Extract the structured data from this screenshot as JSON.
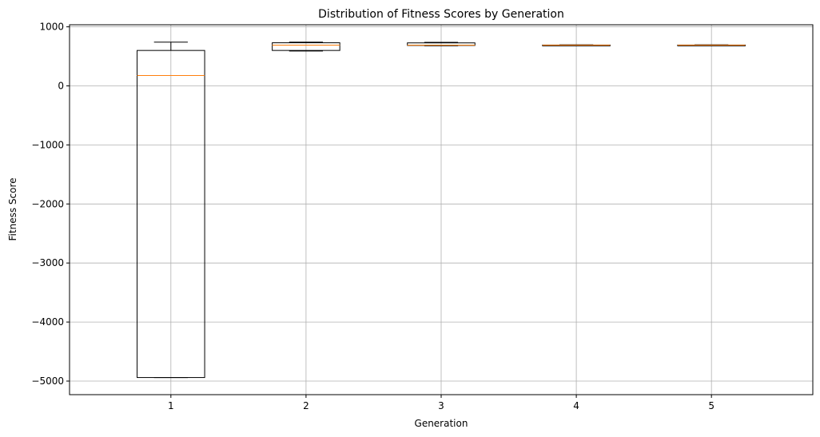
{
  "chart_data": {
    "type": "box",
    "title": "Distribution of Fitness Scores by Generation",
    "xlabel": "Generation",
    "ylabel": "Fitness Score",
    "ylim": [
      -5230,
      1035
    ],
    "yticks": [
      1000,
      0,
      -1000,
      -2000,
      -3000,
      -4000,
      -5000
    ],
    "ytick_labels": [
      "1000",
      "0",
      "−1000",
      "−2000",
      "−3000",
      "−4000",
      "−5000"
    ],
    "categories": [
      "1",
      "2",
      "3",
      "4",
      "5"
    ],
    "grid": true,
    "colors": {
      "box": "#000000",
      "median": "#ff7f0e",
      "grid": "#b0b0b0"
    },
    "boxes": [
      {
        "category": "1",
        "whisker_low": -4940,
        "q1": -4940,
        "median": 175,
        "q3": 600,
        "whisker_high": 740
      },
      {
        "category": "2",
        "whisker_low": 590,
        "q1": 600,
        "median": 690,
        "q3": 730,
        "whisker_high": 740
      },
      {
        "category": "3",
        "whisker_low": 680,
        "q1": 685,
        "median": 690,
        "q3": 728,
        "whisker_high": 738
      },
      {
        "category": "4",
        "whisker_low": 685,
        "q1": 688,
        "median": 690,
        "q3": 692,
        "whisker_high": 695
      },
      {
        "category": "5",
        "whisker_low": 685,
        "q1": 688,
        "median": 690,
        "q3": 692,
        "whisker_high": 695
      }
    ]
  }
}
